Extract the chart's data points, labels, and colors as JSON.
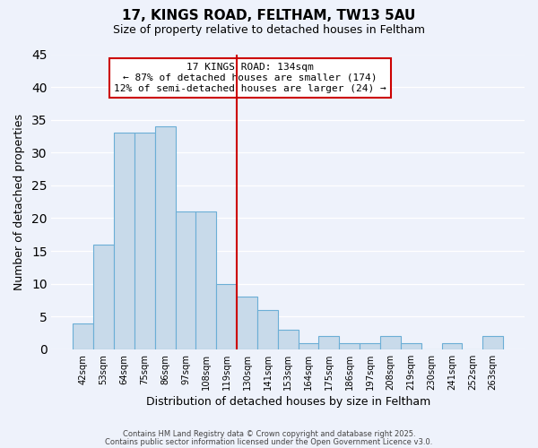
{
  "title": "17, KINGS ROAD, FELTHAM, TW13 5AU",
  "subtitle": "Size of property relative to detached houses in Feltham",
  "xlabel": "Distribution of detached houses by size in Feltham",
  "ylabel": "Number of detached properties",
  "bar_color": "#c8daea",
  "bar_edge_color": "#6baed6",
  "bg_color": "#eef2fb",
  "grid_color": "white",
  "categories": [
    "42sqm",
    "53sqm",
    "64sqm",
    "75sqm",
    "86sqm",
    "97sqm",
    "108sqm",
    "119sqm",
    "130sqm",
    "141sqm",
    "153sqm",
    "164sqm",
    "175sqm",
    "186sqm",
    "197sqm",
    "208sqm",
    "219sqm",
    "230sqm",
    "241sqm",
    "252sqm",
    "263sqm"
  ],
  "values": [
    4,
    16,
    33,
    33,
    34,
    21,
    21,
    10,
    8,
    6,
    3,
    1,
    2,
    1,
    1,
    2,
    1,
    0,
    1,
    0,
    2
  ],
  "ylim": [
    0,
    45
  ],
  "yticks": [
    0,
    5,
    10,
    15,
    20,
    25,
    30,
    35,
    40,
    45
  ],
  "vline_pos": 8.5,
  "vline_color": "#cc0000",
  "annotation_title": "17 KINGS ROAD: 134sqm",
  "annotation_line1": "← 87% of detached houses are smaller (174)",
  "annotation_line2": "12% of semi-detached houses are larger (24) →",
  "annotation_box_color": "white",
  "annotation_box_edge": "#cc0000",
  "footer1": "Contains HM Land Registry data © Crown copyright and database right 2025.",
  "footer2": "Contains public sector information licensed under the Open Government Licence v3.0."
}
